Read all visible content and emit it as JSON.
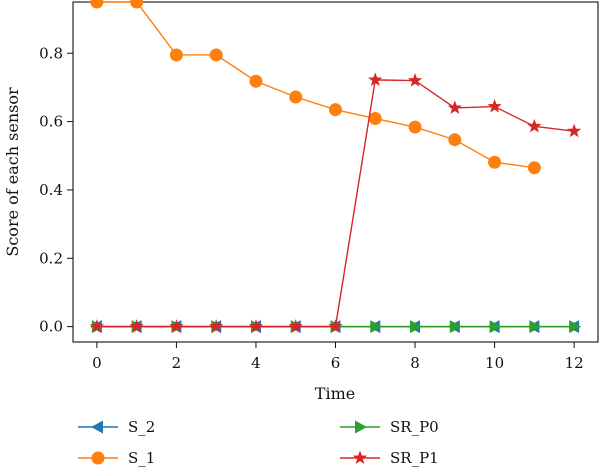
{
  "chart_data": {
    "type": "line",
    "xlabel": "Time",
    "ylabel": "Score of each sensor",
    "xlim": [
      -0.6,
      12.6
    ],
    "ylim": [
      -0.045,
      0.95
    ],
    "xticks": [
      0,
      2,
      4,
      6,
      8,
      10,
      12
    ],
    "xtick_labels": [
      "0",
      "2",
      "4",
      "6",
      "8",
      "10",
      "12"
    ],
    "yticks": [
      0.0,
      0.2,
      0.4,
      0.6,
      0.8
    ],
    "ytick_labels": [
      "0.0",
      "0.2",
      "0.4",
      "0.6",
      "0.8"
    ],
    "grid": false,
    "legend_position": "bottom",
    "series": [
      {
        "name": "S_2",
        "color": "#1f77b4",
        "marker": "triangle-left",
        "x": [
          0,
          1,
          2,
          3,
          4,
          5,
          6,
          7,
          8,
          9,
          10,
          11,
          12
        ],
        "values": [
          0,
          0,
          0,
          0,
          0,
          0,
          0,
          0,
          0,
          0,
          0,
          0,
          0
        ]
      },
      {
        "name": "SR_P0",
        "color": "#2ca02c",
        "marker": "triangle-right",
        "x": [
          0,
          1,
          2,
          3,
          4,
          5,
          6,
          7,
          8,
          9,
          10,
          11,
          12
        ],
        "values": [
          0,
          0,
          0,
          0,
          0,
          0,
          0,
          0,
          0,
          0,
          0,
          0,
          0
        ]
      },
      {
        "name": "S_1",
        "color": "#ff7f0e",
        "marker": "circle",
        "x": [
          0,
          1,
          2,
          3,
          4,
          5,
          6,
          7,
          8,
          9,
          10,
          11
        ],
        "values": [
          0.95,
          0.95,
          0.795,
          0.795,
          0.718,
          0.672,
          0.635,
          0.609,
          0.584,
          0.547,
          0.481,
          0.465
        ]
      },
      {
        "name": "SR_P1",
        "color": "#d62728",
        "marker": "star",
        "x": [
          0,
          1,
          2,
          3,
          4,
          5,
          6,
          7,
          8,
          9,
          10,
          11,
          12
        ],
        "values": [
          0,
          0,
          0,
          0,
          0,
          0,
          0,
          0.722,
          0.72,
          0.64,
          0.644,
          0.586,
          0.572
        ]
      }
    ],
    "legend_order": [
      "S_2",
      "SR_P0",
      "S_1",
      "SR_P1"
    ]
  }
}
